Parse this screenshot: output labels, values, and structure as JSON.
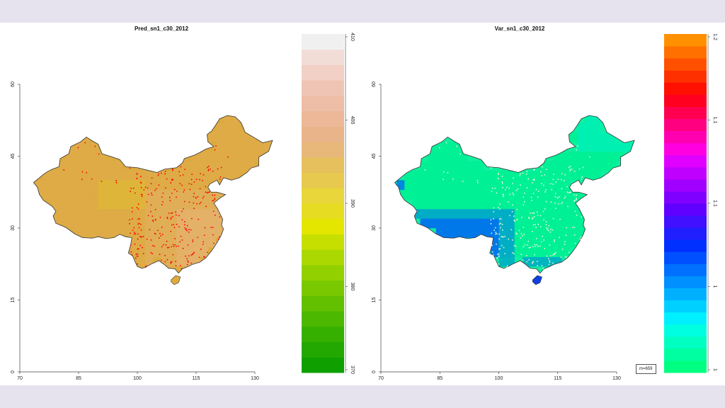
{
  "chart_data": [
    {
      "type": "heatmap",
      "title": "Pred_sn1_c30_2012",
      "x_ticks": [
        "70",
        "85",
        "100",
        "115",
        "130"
      ],
      "y_ticks": [
        "0",
        "15",
        "30",
        "45",
        "60"
      ],
      "xlim": [
        70,
        130
      ],
      "ylim": [
        0,
        60
      ],
      "colorbar_ticks": [
        "370",
        "380",
        "390",
        "400",
        "410"
      ],
      "colorbar_range": [
        370,
        410
      ],
      "colorbar_colors": [
        "#0fa000",
        "#22a800",
        "#36b000",
        "#4cb800",
        "#62c000",
        "#79c800",
        "#92d000",
        "#abd800",
        "#c6df00",
        "#e4e600",
        "#e6dd22",
        "#e8d63a",
        "#e6c94e",
        "#e6c05c",
        "#e8b87a",
        "#eab48a",
        "#ecb898",
        "#eebda6",
        "#f0c4b4",
        "#f2d0c6",
        "#f2dcd6",
        "#f0f0f0"
      ],
      "fill_color": "#ddaa40",
      "points_color": "#ff0000"
    },
    {
      "type": "heatmap",
      "title": "Var_sn1_c30_2012",
      "x_ticks": [
        "70",
        "85",
        "100",
        "115",
        "130"
      ],
      "y_ticks": [
        "0",
        "15",
        "30",
        "45",
        "60"
      ],
      "xlim": [
        70,
        130
      ],
      "ylim": [
        0,
        60
      ],
      "colorbar_ticks": [
        "1",
        "1",
        "1.1",
        "1.1",
        "1.2"
      ],
      "colorbar_colors": [
        "#00ff80",
        "#00ffa0",
        "#00ffc0",
        "#00ffe0",
        "#00f0ff",
        "#00d0ff",
        "#00b0ff",
        "#0090ff",
        "#0070ff",
        "#0050ff",
        "#0030ff",
        "#2020ff",
        "#4010ff",
        "#6000ff",
        "#8000ff",
        "#a000ff",
        "#c000ff",
        "#e000ff",
        "#ff00e0",
        "#ff00b0",
        "#ff0080",
        "#ff0050",
        "#ff0020",
        "#ff1000",
        "#ff3000",
        "#ff5000",
        "#ff7000",
        "#ff9000"
      ],
      "fill_color": "#10f0a0",
      "legend_text": "m=659"
    }
  ]
}
